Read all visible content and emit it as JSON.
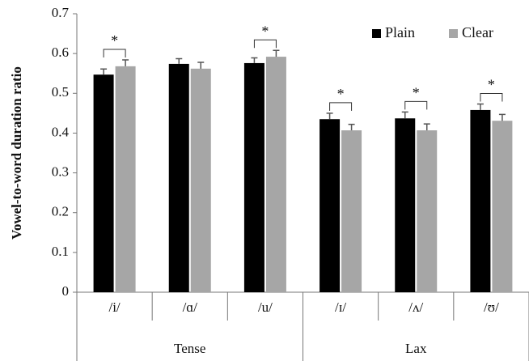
{
  "chart_data": {
    "type": "bar",
    "y_label": "Vowel-to-word duration ratio",
    "categories": [
      "/i/",
      "/ɑ/",
      "/u/",
      "/ɪ/",
      "/ʌ/",
      "/ʊ/"
    ],
    "groups": [
      {
        "label": "Tense",
        "size": 3
      },
      {
        "label": "Lax",
        "size": 3
      }
    ],
    "series": [
      {
        "name": "Plain",
        "color": "#000000",
        "values": [
          0.547,
          0.574,
          0.576,
          0.435,
          0.437,
          0.458
        ],
        "errors": [
          0.014,
          0.013,
          0.013,
          0.015,
          0.016,
          0.015
        ]
      },
      {
        "name": "Clear",
        "color": "#a6a6a6",
        "values": [
          0.568,
          0.562,
          0.592,
          0.407,
          0.407,
          0.431
        ],
        "errors": [
          0.016,
          0.016,
          0.016,
          0.015,
          0.016,
          0.016
        ]
      }
    ],
    "significance_labels": [
      "*",
      null,
      "*",
      "*",
      "*",
      "*"
    ],
    "ylim": [
      0,
      0.7
    ],
    "yticks": [
      0,
      0.1,
      0.2,
      0.3,
      0.4,
      0.5,
      0.6,
      0.7
    ],
    "grid": false,
    "legend": "top-right"
  }
}
